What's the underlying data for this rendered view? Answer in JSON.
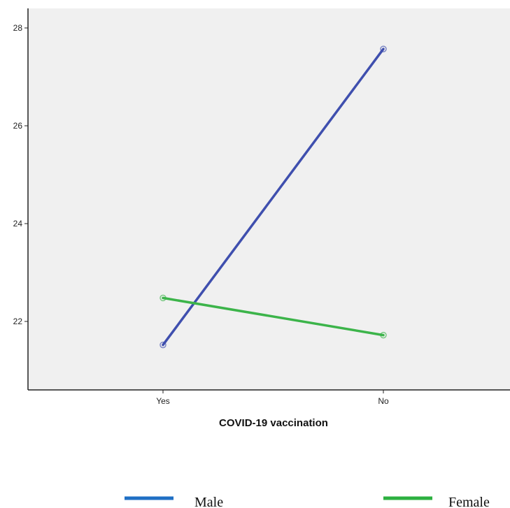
{
  "chart_data": {
    "type": "line",
    "title": "",
    "xlabel": "COVID-19 vaccination",
    "ylabel": "",
    "categories": [
      "Yes",
      "No"
    ],
    "yticks": [
      22,
      24,
      26,
      28
    ],
    "ylim": [
      20.6,
      28.4
    ],
    "grid": false,
    "legend_position": "bottom",
    "plot_background": "#f0f0f0",
    "series": [
      {
        "name": "Male",
        "values": [
          21.52,
          27.57
        ],
        "color": "#3f4fae",
        "legend_color": "#1f6fc4"
      },
      {
        "name": "Female",
        "values": [
          22.48,
          21.72
        ],
        "color": "#3cb44a",
        "legend_color": "#2db040"
      }
    ]
  }
}
